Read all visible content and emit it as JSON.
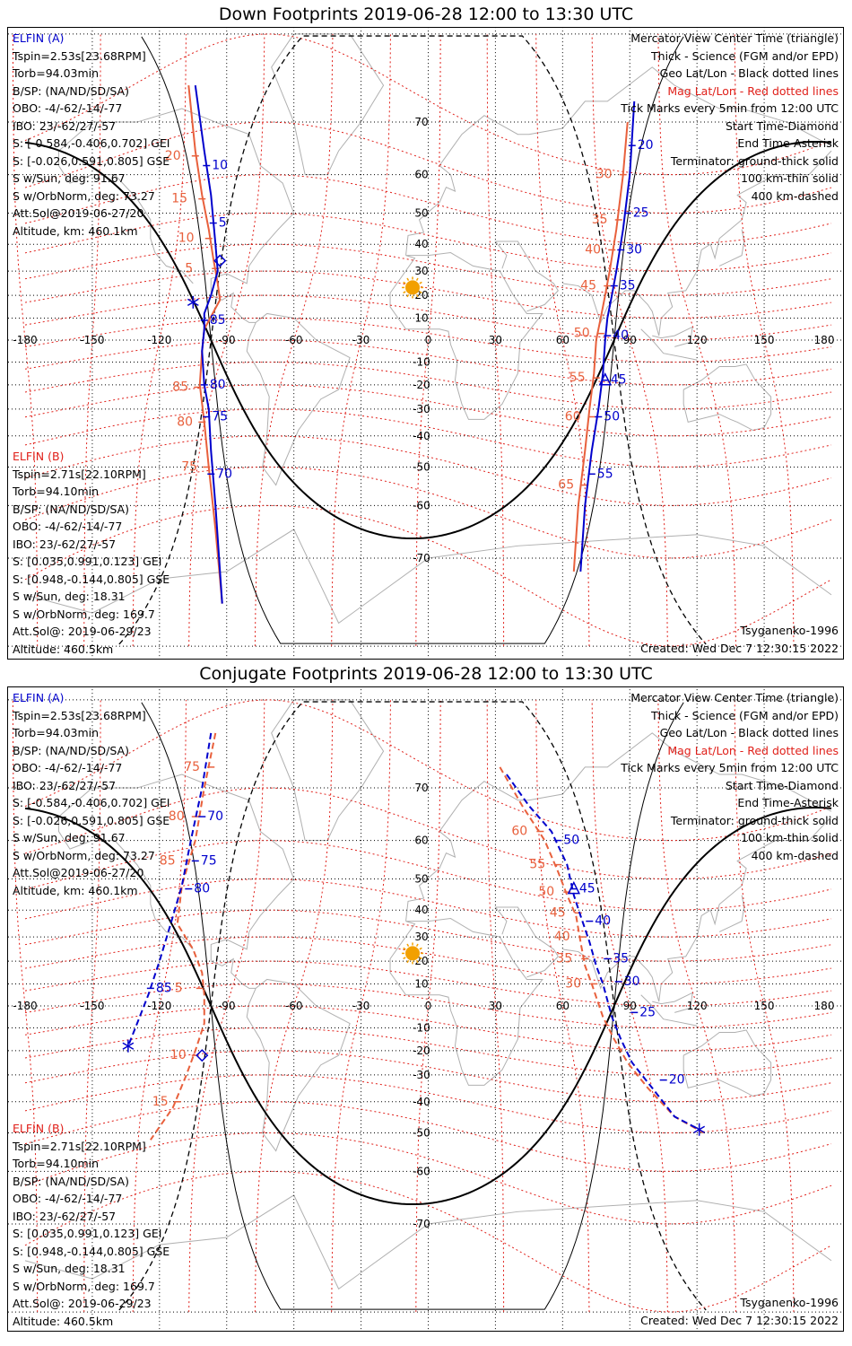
{
  "panels": [
    {
      "title": "Down Footprints 2019-06-28 12:00 to 13:30 UTC",
      "legend": [
        "Mercator View Center Time (triangle)",
        "Thick - Science (FGM and/or EPD)",
        "Geo Lat/Lon - Black dotted lines",
        "Mag Lat/Lon - Red dotted lines",
        "Tick Marks every 5min from 12:00 UTC",
        "Start Time-Diamond",
        "End Time-Asterisk",
        "Terminator: ground-thick solid",
        "100 km-thin solid",
        "400 km-dashed"
      ],
      "model": "Tsyganenko-1996",
      "created": "Created: Wed Dec  7 12:30:15 2022",
      "lon_labels": [
        "-180",
        "-150",
        "-120",
        "-90",
        "-60",
        "-30",
        "0",
        "30",
        "60",
        "90",
        "120",
        "150",
        "180"
      ],
      "lat_labels_left": [
        "70",
        "60",
        "50",
        "40",
        "30",
        "20",
        "10",
        "-10",
        "-20",
        "-30",
        "-40",
        "-50",
        "-60",
        "-70"
      ],
      "lat_labels_right": [
        "70",
        "60",
        "50",
        "40",
        "30",
        "20",
        "10",
        "-10",
        "-20",
        "-30",
        "-40",
        "-50",
        "-60",
        "-70"
      ]
    },
    {
      "title": "Conjugate Footprints 2019-06-28 12:00 to 13:30 UTC",
      "legend": [
        "Mercator View Center Time (triangle)",
        "Thick - Science (FGM and/or EPD)",
        "Geo Lat/Lon - Black dotted lines",
        "Mag Lat/Lon - Red dotted lines",
        "Tick Marks every 5min from 12:00 UTC",
        "Start Time-Diamond",
        "End Time-Asterisk",
        "Terminator: ground-thick solid",
        "100 km-thin solid",
        "400 km-dashed"
      ],
      "model": "Tsyganenko-1996",
      "created": "Created: Wed Dec  7 12:30:15 2022",
      "lon_labels": [
        "-180",
        "-150",
        "-120",
        "-90",
        "-60",
        "-30",
        "0",
        "30",
        "60",
        "90",
        "120",
        "150",
        "180"
      ],
      "lat_labels_left": [
        "70",
        "60",
        "50",
        "40",
        "30",
        "20",
        "10",
        "-10",
        "-20",
        "-30",
        "-40",
        "-50",
        "-60",
        "-70"
      ],
      "lat_labels_right": [
        "70",
        "60",
        "50",
        "40",
        "30",
        "20",
        "10",
        "-10",
        "-20",
        "-30",
        "-40",
        "-50",
        "-60",
        "-70"
      ]
    }
  ],
  "elfin_a": {
    "name": "ELFIN (A)",
    "lines": [
      "Tspin=2.53s[23.68RPM]",
      "Torb=94.03min",
      "B/SP: (NA/ND/SD/SA)",
      "OBO: -4/-62/-14/-77",
      "IBO: 23/-62/27/-57",
      "S: [-0.584,-0.406,0.702] GEI",
      "S: [-0.026,0.591,0.805] GSE",
      "S w/Sun, deg: 91.67",
      "S w/OrbNorm, deg: 73.27",
      "Att.Sol@2019-06-27/20",
      "Altitude, km: 460.1km"
    ]
  },
  "elfin_b": {
    "name": "ELFIN (B)",
    "lines": [
      "Tspin=2.71s[22.10RPM]",
      "Torb=94.10min",
      "B/SP: (NA/ND/SD/SA)",
      "OBO: -4/-62/-14/-77",
      "IBO: 23/-62/27/-57",
      "S: [0.035,0.991,0.123] GEI",
      "S: [0.948,-0.144,0.805] GSE",
      "S w/Sun, deg: 18.31",
      "S w/OrbNorm, deg: 169.7",
      "Att.Sol@: 2019-06-29/23",
      "Altitude: 460.5km"
    ]
  },
  "colors": {
    "elfin_a": "#0000cc",
    "elfin_b": "#e8603c",
    "mag_grid": "#e0201a",
    "geo_grid": "#000000",
    "coast": "#b0b0b0",
    "sun": "#f2a000"
  },
  "tracks": {
    "down_a_west_ticks": [
      "10",
      "5"
    ],
    "down_a_west_ticks_south": [
      "85",
      "80",
      "75",
      "70"
    ],
    "down_b_west_ticks": [
      "20",
      "15",
      "10",
      "5"
    ],
    "down_b_west_ticks_south": [
      "85",
      "80",
      "75"
    ],
    "down_a_east_ticks": [
      "20",
      "25",
      "30",
      "35",
      "40",
      "45",
      "50",
      "55"
    ],
    "down_b_east_ticks": [
      "30",
      "35",
      "40",
      "45",
      "50",
      "55",
      "60",
      "65"
    ],
    "conj_a_west_ticks": [
      "70",
      "75",
      "80",
      "85"
    ],
    "conj_b_west_ticks": [
      "75",
      "80",
      "85",
      "5",
      "10",
      "15"
    ],
    "conj_a_east_ticks": [
      "50",
      "45",
      "40",
      "35",
      "30",
      "25",
      "20"
    ],
    "conj_b_east_ticks": [
      "60",
      "55",
      "50",
      "45",
      "40",
      "35",
      "30"
    ]
  }
}
